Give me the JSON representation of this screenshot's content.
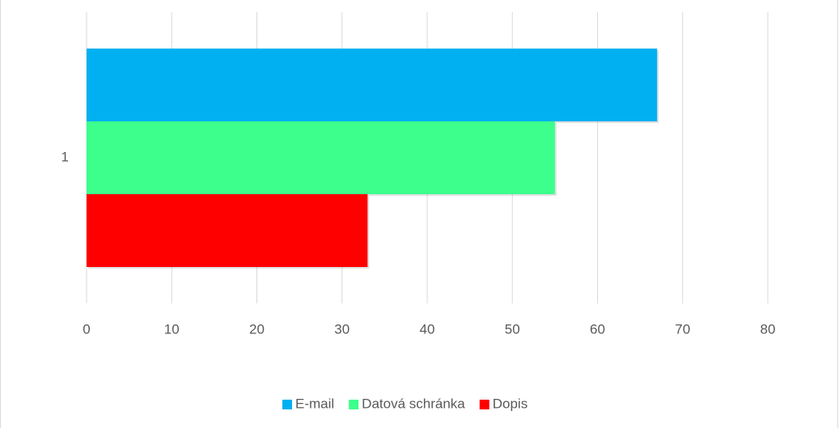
{
  "chart_data": {
    "type": "hbar",
    "categories": [
      "1"
    ],
    "series": [
      {
        "name": "E-mail",
        "color": "#00b0f0",
        "values": [
          67
        ]
      },
      {
        "name": "Datová schránka",
        "color": "#3cff8c",
        "values": [
          55
        ]
      },
      {
        "name": "Dopis",
        "color": "#ff0000",
        "values": [
          33
        ]
      }
    ],
    "xlim": [
      0,
      80
    ],
    "xticks": [
      0,
      10,
      20,
      30,
      40,
      50,
      60,
      70,
      80
    ],
    "grid": true,
    "legend": "bottom"
  }
}
